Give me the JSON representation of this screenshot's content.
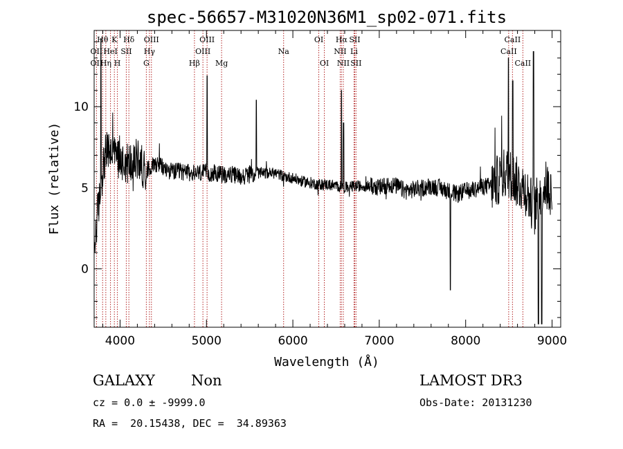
{
  "chart_data": {
    "type": "line",
    "title": "spec-56657-M31020N36M1_sp02-071.fits",
    "xlabel": "Wavelength (Å)",
    "ylabel": "Flux (relative)",
    "xlim": [
      3700,
      9100
    ],
    "ylim": [
      -3.6,
      14.7
    ],
    "x_ticks": [
      4000,
      5000,
      6000,
      7000,
      8000,
      9000
    ],
    "y_ticks": [
      0,
      5,
      10
    ],
    "grid": false,
    "series": [
      {
        "x": [
          3700,
          3740,
          3770,
          3800,
          3830,
          3860,
          3900,
          3950,
          4000,
          4050,
          4100,
          4150,
          4200,
          4250,
          4300,
          4350,
          4400,
          4450,
          4500,
          4600,
          4700,
          4800,
          4900,
          5000,
          5100,
          5200,
          5300,
          5400,
          5500,
          5600,
          5700,
          5800,
          5900,
          6000,
          6100,
          6200,
          6300,
          6400,
          6500,
          6600,
          6700,
          6800,
          6900,
          7000,
          7100,
          7200,
          7300,
          7400,
          7500,
          7600,
          7700,
          7800,
          7900,
          8000,
          8100,
          8200,
          8300,
          8400,
          8450,
          8500,
          8550,
          8600,
          8650,
          8700,
          8750,
          8800,
          8850,
          8900,
          8950,
          9000
        ],
        "y": [
          1.0,
          3.5,
          4.5,
          6.2,
          7.0,
          7.3,
          7.2,
          7.0,
          6.8,
          6.6,
          6.5,
          6.6,
          6.8,
          6.4,
          6.0,
          6.3,
          6.5,
          6.5,
          6.2,
          6.0,
          6.0,
          5.9,
          5.9,
          5.9,
          5.9,
          5.8,
          5.8,
          5.7,
          5.8,
          5.9,
          5.9,
          5.9,
          5.7,
          5.6,
          5.4,
          5.3,
          5.2,
          5.2,
          5.1,
          5.0,
          5.1,
          5.1,
          5.1,
          5.0,
          5.2,
          5.1,
          4.8,
          4.9,
          5.0,
          5.1,
          5.0,
          4.8,
          4.6,
          4.8,
          4.9,
          5.1,
          5.1,
          5.6,
          5.9,
          5.9,
          5.6,
          5.3,
          5.1,
          4.8,
          4.2,
          3.6,
          4.6,
          5.2,
          5.0,
          4.8
        ]
      }
    ],
    "line_markers": [
      {
        "label": "OII",
        "x": 3727,
        "row": 2
      },
      {
        "label": "OII",
        "x": 3727,
        "row": 1
      },
      {
        "label": "Hθ",
        "x": 3798,
        "row": 0
      },
      {
        "label": "Hη",
        "x": 3835,
        "row": 2
      },
      {
        "label": "K",
        "x": 3934,
        "row": 0
      },
      {
        "label": "HeI",
        "x": 3889,
        "row": 1
      },
      {
        "label": "SII",
        "x": 4072,
        "row": 1
      },
      {
        "label": "H",
        "x": 3969,
        "row": 2
      },
      {
        "label": "Hδ",
        "x": 4102,
        "row": 0
      },
      {
        "label": "OIII",
        "x": 4363,
        "row": 0
      },
      {
        "label": "Hγ",
        "x": 4340,
        "row": 1
      },
      {
        "label": "G",
        "x": 4304,
        "row": 2
      },
      {
        "label": "OIII",
        "x": 5007,
        "row": 0
      },
      {
        "label": "OIII",
        "x": 4959,
        "row": 1
      },
      {
        "label": "Hβ",
        "x": 4861,
        "row": 2
      },
      {
        "label": "Mg",
        "x": 5175,
        "row": 2
      },
      {
        "label": "Na",
        "x": 5893,
        "row": 1
      },
      {
        "label": "OI",
        "x": 6300,
        "row": 0
      },
      {
        "label": "OI",
        "x": 6364,
        "row": 2
      },
      {
        "label": "Hα",
        "x": 6563,
        "row": 0
      },
      {
        "label": "SII",
        "x": 6716,
        "row": 0
      },
      {
        "label": "NII",
        "x": 6548,
        "row": 1
      },
      {
        "label": "Li",
        "x": 6708,
        "row": 1
      },
      {
        "label": "NII",
        "x": 6584,
        "row": 2
      },
      {
        "label": "SII",
        "x": 6731,
        "row": 2
      },
      {
        "label": "CaII",
        "x": 8542,
        "row": 0
      },
      {
        "label": "CaII",
        "x": 8498,
        "row": 1
      },
      {
        "label": "CaII",
        "x": 8662,
        "row": 2
      }
    ]
  },
  "info": {
    "class": "GALAXY",
    "subclass": "Non",
    "survey": "LAMOST DR3",
    "cz": "cz = 0.0 ± -9999.0",
    "obs_date": "Obs-Date: 20131230",
    "radec": "RA =  20.15438, DEC =  34.89363"
  },
  "colors": {
    "spectrum": "#000000",
    "marker_line": "#b22222"
  }
}
